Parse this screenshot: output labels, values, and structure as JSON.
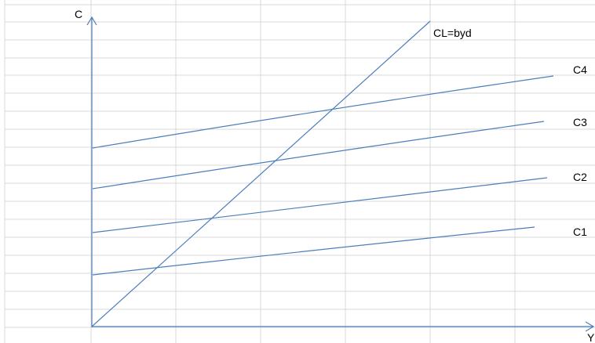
{
  "diagram": {
    "y_axis_label": "C",
    "x_axis_label": "Y",
    "colors": {
      "grid": "#d9d9d9",
      "lines": "#4a7ebb",
      "text": "#000000"
    },
    "curves": [
      {
        "label": "CL=byd"
      },
      {
        "label": "C4"
      },
      {
        "label": "C3"
      },
      {
        "label": "C2"
      },
      {
        "label": "C1"
      }
    ]
  }
}
